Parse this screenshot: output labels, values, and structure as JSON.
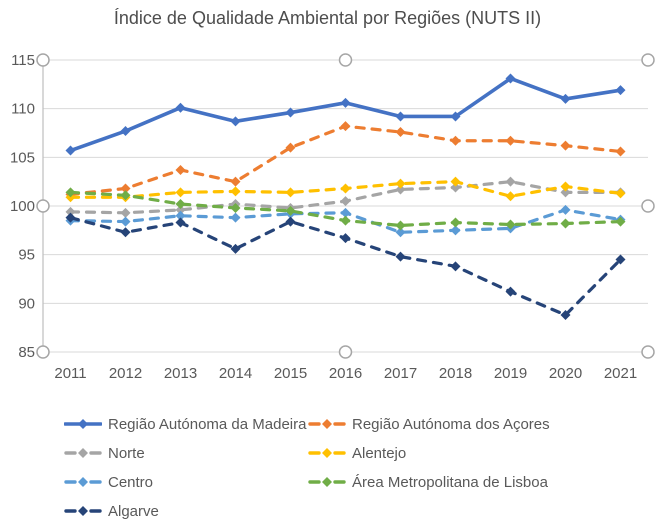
{
  "title": "Índice de Qualidade Ambiental por Regiões (NUTS II)",
  "colors": {
    "gridline": "#d9d9d9",
    "axis_line": "#bfbfbf",
    "tick_text": "#595959",
    "title_text": "#4d4d4d",
    "selection_handle_stroke": "#a6a6a6",
    "selection_handle_fill": "#ffffff"
  },
  "chart_data": {
    "type": "line",
    "title": "Índice de Qualidade Ambiental por Regiões (NUTS II)",
    "x": [
      2011,
      2012,
      2013,
      2014,
      2015,
      2016,
      2017,
      2018,
      2019,
      2020,
      2021
    ],
    "xlabel": "",
    "ylabel": "",
    "ylim": [
      85,
      115
    ],
    "yticks": [
      85,
      90,
      95,
      100,
      105,
      110,
      115
    ],
    "grid": true,
    "legend_position": "bottom",
    "marker": "diamond",
    "series": [
      {
        "name": "Região Autónoma da Madeira",
        "color": "#4472C4",
        "dash": false,
        "values": [
          105.7,
          107.7,
          110.1,
          108.7,
          109.6,
          110.6,
          109.2,
          109.2,
          113.1,
          111.0,
          111.9
        ]
      },
      {
        "name": "Região Autónoma dos Açores",
        "color": "#ED7D31",
        "dash": true,
        "values": [
          101.2,
          101.8,
          103.7,
          102.5,
          106.0,
          108.2,
          107.6,
          106.7,
          106.7,
          106.2,
          105.6
        ]
      },
      {
        "name": "Norte",
        "color": "#A5A5A5",
        "dash": true,
        "values": [
          99.4,
          99.3,
          99.6,
          100.2,
          99.8,
          100.5,
          101.7,
          101.9,
          102.5,
          101.4,
          101.4
        ]
      },
      {
        "name": "Alentejo",
        "color": "#FFC000",
        "dash": true,
        "values": [
          100.9,
          100.9,
          101.4,
          101.5,
          101.4,
          101.8,
          102.3,
          102.5,
          101.0,
          102.0,
          101.3
        ]
      },
      {
        "name": "Centro",
        "color": "#5B9BD5",
        "dash": true,
        "values": [
          98.5,
          98.4,
          99.0,
          98.8,
          99.2,
          99.3,
          97.3,
          97.5,
          97.7,
          99.6,
          98.6
        ]
      },
      {
        "name": "Área Metropolitana de Lisboa",
        "color": "#70AD47",
        "dash": true,
        "values": [
          101.4,
          101.1,
          100.2,
          99.8,
          99.5,
          98.5,
          98.0,
          98.3,
          98.1,
          98.2,
          98.4
        ]
      },
      {
        "name": "Algarve",
        "color": "#264478",
        "dash": true,
        "values": [
          98.8,
          97.3,
          98.3,
          95.6,
          98.4,
          96.7,
          94.8,
          93.8,
          91.2,
          88.8,
          94.5
        ]
      }
    ]
  }
}
